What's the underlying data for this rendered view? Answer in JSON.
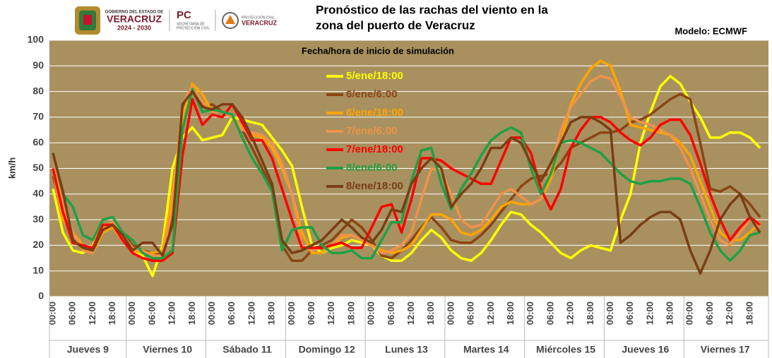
{
  "logos": [
    "GOBIERNO DEL ESTADO DE",
    "VERACRUZ",
    "2024 - 2030",
    "PC",
    "SECRETARÍA DE",
    "PROTECCIÓN CIVIL",
    "PROTECCIÓN CIVIL",
    "VERACRUZ"
  ],
  "chart_data": {
    "type": "line",
    "title": [
      "Pronóstico de las rachas del viento en la",
      "zona del puerto de Veracruz"
    ],
    "model_label": "Modelo: ECMWF",
    "legend_title": "Fecha/hora de inicio de simulación",
    "y_label": "km/h",
    "ylim": [
      0,
      100
    ],
    "yticks": [
      0,
      10,
      20,
      30,
      40,
      50,
      60,
      70,
      80,
      90,
      100
    ],
    "grid": true,
    "plot_background": "#a8915f",
    "categories": [
      "00:00",
      null,
      "06:00",
      null,
      "12:00",
      null,
      "18:00",
      null,
      "00:00",
      null,
      "06:00",
      null,
      "12:00",
      null,
      "18:00",
      null,
      "00:00",
      null,
      "06:00",
      null,
      "12:00",
      null,
      "18:00",
      null,
      "00:00",
      null,
      "06:00",
      null,
      "12:00",
      null,
      "18:00",
      null,
      "00:00",
      null,
      "06:00",
      null,
      "12:00",
      null,
      "18:00",
      null,
      "00:00",
      null,
      "06:00",
      null,
      "12:00",
      null,
      "18:00",
      null,
      "00:00",
      null,
      "06:00",
      null,
      "12:00",
      null,
      "18:00",
      null,
      "00:00",
      null,
      "06:00",
      null,
      "12:00",
      null,
      "18:00",
      null,
      "00:00",
      null,
      "06:00",
      null,
      "12:00",
      null,
      "18:00",
      null
    ],
    "day_groups": [
      "Jueves 9",
      "Viernes 10",
      "Sábado 11",
      "Domingo 12",
      "Lunes 13",
      "Martes 14",
      "Miércoles 15",
      "Jueves 16",
      "Viernes 17"
    ],
    "series": [
      {
        "name": "5/ene/18:00",
        "color": "#ffff00",
        "values": [
          42,
          25,
          18,
          17,
          20,
          28,
          28,
          22,
          18,
          16,
          8,
          20,
          50,
          62,
          66,
          61,
          62,
          63,
          70,
          69,
          68,
          67,
          62,
          57,
          51,
          35,
          20,
          17,
          19,
          20,
          22,
          21,
          20,
          16,
          14,
          14,
          17,
          22,
          26,
          23,
          18,
          15,
          14,
          17,
          22,
          28,
          33,
          32,
          28,
          25,
          21,
          17,
          15,
          18,
          20,
          19,
          18,
          30,
          40,
          60,
          72,
          82,
          86,
          83,
          76,
          70,
          62,
          62,
          64,
          64,
          62,
          58
        ]
      },
      {
        "name": "6/ene/6:00",
        "color": "#8b4513",
        "values": [
          47,
          35,
          22,
          20,
          18,
          25,
          28,
          25,
          20,
          18,
          17,
          16,
          30,
          74,
          82,
          74,
          75,
          72,
          70,
          65,
          58,
          50,
          42,
          20,
          14,
          14,
          18,
          20,
          22,
          26,
          30,
          27,
          22,
          16,
          15,
          18,
          22,
          27,
          31,
          27,
          22,
          21,
          21,
          24,
          28,
          33,
          38,
          43,
          46,
          47,
          48,
          52,
          58,
          60,
          62,
          64,
          64,
          65,
          68,
          69,
          71,
          74,
          77,
          79,
          77,
          60,
          42,
          41,
          43,
          40,
          36,
          31
        ]
      },
      {
        "name": "6/ene/18:00",
        "color": "#ffa500",
        "values": [
          50,
          30,
          25,
          20,
          17,
          25,
          27,
          22,
          18,
          17,
          17,
          18,
          40,
          70,
          83,
          79,
          72,
          72,
          70,
          66,
          63,
          62,
          58,
          50,
          40,
          25,
          17,
          17,
          20,
          23,
          24,
          22,
          20,
          18,
          17,
          18,
          20,
          26,
          32,
          32,
          30,
          25,
          24,
          26,
          30,
          35,
          37,
          36,
          36,
          38,
          46,
          60,
          75,
          83,
          89,
          92,
          90,
          80,
          67,
          66,
          65,
          64,
          63,
          60,
          55,
          45,
          35,
          25,
          22,
          22,
          25,
          29
        ]
      },
      {
        "name": "7/ene/6:00",
        "color": "#f0924a",
        "values": [
          56,
          35,
          25,
          18,
          17,
          27,
          29,
          24,
          19,
          18,
          16,
          16,
          35,
          75,
          82,
          76,
          72,
          72,
          70,
          65,
          64,
          63,
          60,
          52,
          40,
          20,
          18,
          19,
          20,
          24,
          24,
          22,
          20,
          17,
          18,
          20,
          25,
          38,
          50,
          49,
          40,
          30,
          27,
          28,
          34,
          40,
          42,
          39,
          36,
          38,
          50,
          65,
          74,
          79,
          84,
          86,
          85,
          78,
          70,
          68,
          67,
          65,
          63,
          58,
          50,
          40,
          30,
          22,
          20,
          25,
          30,
          27
        ]
      },
      {
        "name": "7/ene/18:00",
        "color": "#ff0000",
        "values": [
          50,
          33,
          21,
          20,
          19,
          28,
          28,
          22,
          17,
          15,
          14,
          14,
          17,
          55,
          77,
          67,
          71,
          70,
          75,
          68,
          61,
          61,
          54,
          42,
          30,
          19,
          19,
          19,
          20,
          21,
          19,
          19,
          27,
          35,
          36,
          25,
          38,
          54,
          54,
          53,
          50,
          48,
          46,
          44,
          44,
          53,
          62,
          62,
          56,
          42,
          34,
          42,
          58,
          65,
          70,
          70,
          68,
          64,
          61,
          59,
          62,
          67,
          69,
          69,
          63,
          52,
          40,
          30,
          22,
          27,
          31,
          28
        ]
      },
      {
        "name": "8/ene/6:00",
        "color": "#1fa045",
        "values": [
          56,
          40,
          35,
          24,
          22,
          30,
          31,
          25,
          22,
          17,
          15,
          15,
          18,
          65,
          81,
          72,
          73,
          72,
          71,
          62,
          54,
          48,
          41,
          18,
          26,
          27,
          27,
          20,
          17,
          17,
          18,
          15,
          15,
          22,
          29,
          29,
          45,
          57,
          58,
          44,
          34,
          42,
          48,
          55,
          61,
          64,
          66,
          64,
          50,
          40,
          48,
          60,
          61,
          60,
          58,
          56,
          52,
          48,
          45,
          44,
          45,
          45,
          46,
          46,
          44,
          35,
          25,
          18,
          14,
          18,
          24,
          25
        ]
      },
      {
        "name": "8/ene/18:00",
        "color": "#7a3e14",
        "values": [
          56,
          41,
          22,
          19,
          18,
          26,
          28,
          24,
          18,
          21,
          21,
          16,
          28,
          75,
          80,
          74,
          73,
          75,
          75,
          70,
          62,
          53,
          44,
          22,
          17,
          18,
          20,
          22,
          26,
          30,
          27,
          23,
          21,
          26,
          34,
          33,
          44,
          50,
          54,
          50,
          35,
          40,
          44,
          50,
          58,
          58,
          62,
          60,
          52,
          45,
          52,
          60,
          68,
          70,
          70,
          68,
          65,
          21,
          24,
          28,
          31,
          33,
          33,
          30,
          18,
          9,
          18,
          30,
          36,
          40,
          31,
          25
        ]
      }
    ]
  }
}
